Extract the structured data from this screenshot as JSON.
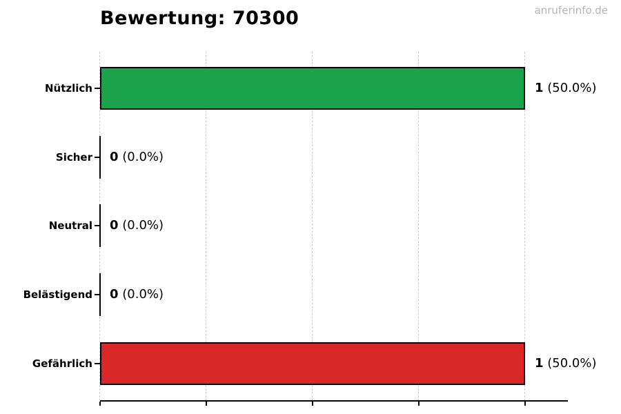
{
  "title": "Bewertung: 70300",
  "watermark": "anruferinfo.de",
  "colors": {
    "positive_bar": "#1aa34b",
    "negative_bar": "#da2828",
    "bar_edge": "#000000",
    "gridline": "#cccccc",
    "watermark_text": "#b5b5b5",
    "text": "#000000"
  },
  "chart_data": {
    "type": "bar",
    "orientation": "horizontal",
    "title": "Bewertung: 70300",
    "categories": [
      "Nützlich",
      "Sicher",
      "Neutral",
      "Belästigend",
      "Gefährlich"
    ],
    "values": [
      1,
      0,
      0,
      0,
      1
    ],
    "percentages": [
      50.0,
      0.0,
      0.0,
      0.0,
      50.0
    ],
    "value_labels": [
      "1 (50.0%)",
      "0 (0.0%)",
      "0 (0.0%)",
      "0 (0.0%)",
      "1 (50.0%)"
    ],
    "xlabel": "",
    "ylabel": "",
    "xlim": [
      0,
      1.1
    ],
    "xticks": [
      0,
      0.25,
      0.5,
      0.75,
      1.0
    ],
    "xtick_labels_visible": false,
    "grid": "vertical-dashed",
    "legend": null,
    "rows": [
      {
        "category": "Nützlich",
        "value": 1,
        "value_text": "1",
        "pct_text": " (50.0%)",
        "color": "#1aa34b"
      },
      {
        "category": "Sicher",
        "value": 0,
        "value_text": "0",
        "pct_text": " (0.0%)",
        "color": null
      },
      {
        "category": "Neutral",
        "value": 0,
        "value_text": "0",
        "pct_text": " (0.0%)",
        "color": null
      },
      {
        "category": "Belästigend",
        "value": 0,
        "value_text": "0",
        "pct_text": " (0.0%)",
        "color": null
      },
      {
        "category": "Gefährlich",
        "value": 1,
        "value_text": "1",
        "pct_text": " (50.0%)",
        "color": "#da2828"
      }
    ]
  }
}
